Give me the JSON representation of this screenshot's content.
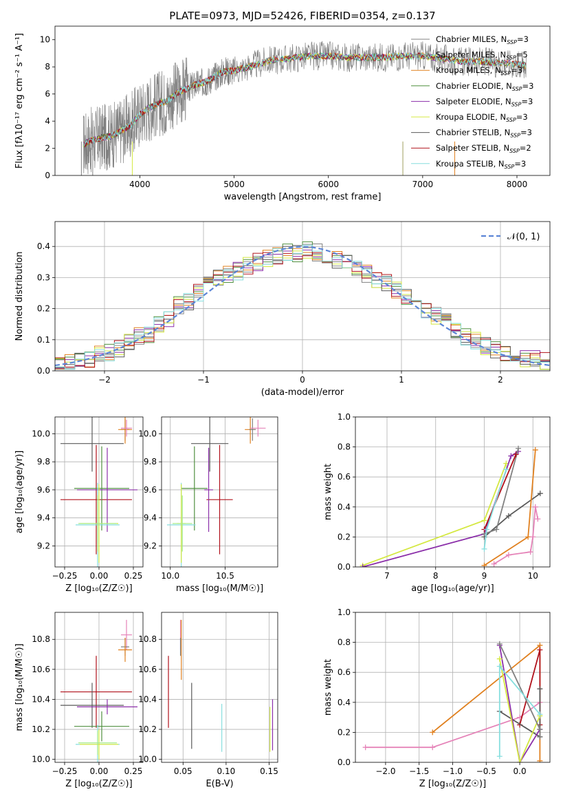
{
  "figure": {
    "title": "PLATE=0973, MJD=52426, FIBERID=0354, z=0.137"
  },
  "colors": {
    "Chabrier MILES": "#808080",
    "Salpeter MILES": "#8a8a8a",
    "Kroupa MILES": "#e0801f",
    "Chabrier ELODIE": "#4f8f3f",
    "Salpeter ELODIE": "#8b2fa9",
    "Kroupa ELODIE": "#d4e840",
    "Chabrier STELIB": "#595959",
    "Salpeter STELIB": "#b0101a",
    "Kroupa STELIB": "#86dede",
    "pink": "#e583b8",
    "green_light": "#a8ec8c",
    "dashed": "#5b85d6",
    "kroupa_age": "#e07a30"
  },
  "chart_data": [
    {
      "id": "spectrum",
      "type": "line",
      "title": "PLATE=0973, MJD=52426, FIBERID=0354, z=0.137",
      "xlabel": "wavelength [Angstrom, rest frame]",
      "ylabel": "Flux [fλ10⁻¹⁷ erg cm⁻² s⁻¹ A⁻¹]",
      "xlim": [
        3100,
        8350
      ],
      "ylim": [
        0,
        11
      ],
      "xticks": [
        4000,
        5000,
        6000,
        7000,
        8000
      ],
      "yticks": [
        0,
        2,
        4,
        6,
        8,
        10
      ],
      "legend_position": "right",
      "legend": [
        "Chabrier MILES, N_SSP=3",
        "Salpeter MILES, N_SSP=5",
        "Kroupa MILES, N_SSP=3",
        "Chabrier ELODIE, N_SSP=3",
        "Salpeter ELODIE, N_SSP=3",
        "Kroupa ELODIE, N_SSP=3",
        "Chabrier STELIB, N_SSP=3",
        "Salpeter STELIB, N_SSP=2",
        "Kroupa STELIB, N_SSP=3"
      ],
      "data_x": [
        3400,
        3500,
        3600,
        3700,
        3800,
        3900,
        4000,
        4100,
        4200,
        4300,
        4400,
        4500,
        4600,
        4700,
        4800,
        4900,
        5000,
        5200,
        5400,
        5600,
        5800,
        6000,
        6200,
        6400,
        6600,
        6800,
        7000,
        7200,
        7400,
        7600,
        7800,
        8000,
        8100
      ],
      "data_y": [
        2.3,
        2.6,
        2.8,
        2.9,
        3.3,
        3.7,
        4.5,
        5.0,
        5.3,
        5.5,
        6.1,
        6.4,
        6.7,
        6.9,
        7.3,
        7.7,
        7.7,
        8.1,
        8.5,
        8.6,
        8.8,
        8.8,
        8.7,
        8.7,
        8.7,
        8.8,
        8.8,
        8.6,
        8.4,
        8.4,
        8.3,
        8.2,
        8.1
      ]
    },
    {
      "id": "residual_hist",
      "type": "line",
      "xlabel": "(data-model)/error",
      "ylabel": "Normed distribution",
      "xlim": [
        -2.5,
        2.5
      ],
      "ylim": [
        0,
        0.48
      ],
      "xticks": [
        -2,
        -1,
        0,
        1,
        2
      ],
      "yticks": [
        0.0,
        0.1,
        0.2,
        0.3,
        0.4
      ],
      "legend": [
        "𝒩(0, 1)"
      ],
      "legend_position": "top-right",
      "bins": [
        -2.5,
        -2.4,
        -2.3,
        -2.2,
        -2.1,
        -2.0,
        -1.9,
        -1.8,
        -1.7,
        -1.6,
        -1.5,
        -1.4,
        -1.3,
        -1.2,
        -1.1,
        -1.0,
        -0.9,
        -0.8,
        -0.7,
        -0.6,
        -0.5,
        -0.4,
        -0.3,
        -0.2,
        -0.1,
        0.0,
        0.1,
        0.2,
        0.3,
        0.4,
        0.5,
        0.6,
        0.7,
        0.8,
        0.9,
        1.0,
        1.1,
        1.2,
        1.3,
        1.4,
        1.5,
        1.6,
        1.7,
        1.8,
        1.9,
        2.0,
        2.1,
        2.2,
        2.3,
        2.4
      ],
      "hist_values": [
        0.02,
        0.03,
        0.03,
        0.04,
        0.05,
        0.06,
        0.07,
        0.09,
        0.11,
        0.12,
        0.15,
        0.17,
        0.21,
        0.22,
        0.25,
        0.28,
        0.3,
        0.31,
        0.32,
        0.34,
        0.35,
        0.36,
        0.37,
        0.38,
        0.38,
        0.39,
        0.38,
        0.37,
        0.36,
        0.35,
        0.33,
        0.31,
        0.29,
        0.28,
        0.26,
        0.24,
        0.22,
        0.2,
        0.18,
        0.16,
        0.13,
        0.11,
        0.1,
        0.08,
        0.07,
        0.05,
        0.05,
        0.04,
        0.04,
        0.03
      ]
    },
    {
      "id": "age_vs_Z",
      "type": "scatter",
      "xlabel": "Z [log₁₀(Z/Z☉)]",
      "ylabel": "age  [log₁₀(age/yr)]",
      "xlim": [
        -0.32,
        0.32
      ],
      "ylim": [
        9.05,
        10.12
      ],
      "xticks": [
        -0.25,
        0.0,
        0.25
      ],
      "xticklabels": [
        "−0.25",
        "0.00",
        "0.25"
      ],
      "yticks": [
        9.2,
        9.4,
        9.6,
        9.8,
        10.0
      ],
      "points": [
        {
          "series": "Chabrier MILES",
          "x": 0.19,
          "y": 10.03,
          "xerr": 0.03,
          "yerr": 0.08
        },
        {
          "series": "Kroupa MILES",
          "x": 0.19,
          "y": 10.03,
          "xerr": 0.05,
          "yerr": 0.1
        },
        {
          "series": "pink",
          "x": 0.2,
          "y": 10.04,
          "xerr": 0.04,
          "yerr": 0.06
        },
        {
          "series": "Chabrier STELIB",
          "x": -0.05,
          "y": 9.93,
          "xerr": 0.23,
          "yerr": 0.2
        },
        {
          "series": "Salpeter STELIB",
          "x": -0.02,
          "y": 9.53,
          "xerr": 0.26,
          "yerr": 0.39
        },
        {
          "series": "Chabrier ELODIE",
          "x": 0.02,
          "y": 9.61,
          "xerr": 0.2,
          "yerr": 0.3
        },
        {
          "series": "Salpeter ELODIE",
          "x": 0.06,
          "y": 9.6,
          "xerr": 0.22,
          "yerr": 0.3
        },
        {
          "series": "Kroupa STELIB",
          "x": -0.01,
          "y": 9.35,
          "xerr": 0.16,
          "yerr": 0.3
        },
        {
          "series": "Kroupa ELODIE",
          "x": 0.0,
          "y": 9.36,
          "xerr": 0.14,
          "yerr": 0.28
        },
        {
          "series": "green_light",
          "x": -0.01,
          "y": 9.36,
          "xerr": 0.14,
          "yerr": 0.2
        }
      ]
    },
    {
      "id": "age_vs_mass",
      "type": "scatter",
      "xlabel": "mass [log₁₀(M/M☉)]",
      "ylabel": "",
      "xlim": [
        9.92,
        10.98
      ],
      "ylim": [
        9.05,
        10.12
      ],
      "xticks": [
        10.0,
        10.5
      ],
      "xticklabels": [
        "10.0",
        "10.5"
      ],
      "yticks": [
        9.2,
        9.4,
        9.6,
        9.8,
        10.0
      ],
      "points": [
        {
          "series": "Kroupa MILES",
          "x": 10.73,
          "y": 10.03,
          "xerr": 0.05,
          "yerr": 0.1
        },
        {
          "series": "Chabrier MILES",
          "x": 10.75,
          "y": 10.03,
          "xerr": 0.03,
          "yerr": 0.08
        },
        {
          "series": "pink",
          "x": 10.8,
          "y": 10.04,
          "xerr": 0.07,
          "yerr": 0.06
        },
        {
          "series": "Chabrier STELIB",
          "x": 10.36,
          "y": 9.93,
          "xerr": 0.17,
          "yerr": 0.2
        },
        {
          "series": "Salpeter STELIB",
          "x": 10.45,
          "y": 9.53,
          "xerr": 0.12,
          "yerr": 0.39
        },
        {
          "series": "Chabrier ELODIE",
          "x": 10.22,
          "y": 9.61,
          "xerr": 0.12,
          "yerr": 0.3
        },
        {
          "series": "Salpeter ELODIE",
          "x": 10.35,
          "y": 9.6,
          "xerr": 0.04,
          "yerr": 0.3
        },
        {
          "series": "Kroupa STELIB",
          "x": 10.1,
          "y": 9.35,
          "xerr": 0.13,
          "yerr": 0.3
        },
        {
          "series": "Kroupa ELODIE",
          "x": 10.1,
          "y": 9.36,
          "xerr": 0.04,
          "yerr": 0.28
        },
        {
          "series": "green_light",
          "x": 10.11,
          "y": 9.36,
          "xerr": 0.09,
          "yerr": 0.2
        }
      ]
    },
    {
      "id": "massweight_vs_age",
      "type": "line",
      "xlabel": "age  [log₁₀(age/yr)]",
      "ylabel": "mass weight",
      "xlim": [
        6.35,
        10.35
      ],
      "ylim": [
        0,
        1.0
      ],
      "xticks": [
        7,
        8,
        9,
        10
      ],
      "yticks": [
        0.0,
        0.2,
        0.4,
        0.6,
        0.8,
        1.0
      ],
      "series": [
        {
          "color": "Kroupa ELODIE",
          "x": [
            6.5,
            9.0,
            9.45
          ],
          "y": [
            0.01,
            0.31,
            0.69
          ]
        },
        {
          "color": "Salpeter ELODIE",
          "x": [
            6.5,
            9.0,
            9.55,
            9.7
          ],
          "y": [
            0.0,
            0.22,
            0.74,
            0.77
          ]
        },
        {
          "color": "Chabrier STELIB",
          "x": [
            9.0,
            9.5,
            10.15
          ],
          "y": [
            0.2,
            0.34,
            0.49
          ]
        },
        {
          "color": "Chabrier MILES",
          "x": [
            9.0,
            9.25,
            9.7
          ],
          "y": [
            0.22,
            0.25,
            0.79
          ]
        },
        {
          "color": "Salpeter STELIB",
          "x": [
            9.0,
            9.65
          ],
          "y": [
            0.25,
            0.75
          ]
        },
        {
          "color": "Kroupa STELIB",
          "x": [
            9.0,
            9.05,
            9.45
          ],
          "y": [
            0.12,
            0.25,
            0.65
          ]
        },
        {
          "color": "Kroupa MILES",
          "x": [
            9.0,
            9.9,
            10.05
          ],
          "y": [
            0.01,
            0.2,
            0.78
          ]
        },
        {
          "color": "pink",
          "x": [
            9.2,
            9.5,
            9.95,
            10.0,
            10.05,
            10.1
          ],
          "y": [
            0.02,
            0.08,
            0.1,
            0.2,
            0.4,
            0.32
          ]
        }
      ]
    },
    {
      "id": "mass_vs_Z",
      "type": "scatter",
      "xlabel": "Z [log₁₀(Z/Z☉)]",
      "ylabel": "mass [log₁₀(M/M☉)]",
      "xlim": [
        -0.32,
        0.32
      ],
      "ylim": [
        9.98,
        10.98
      ],
      "xticks": [
        -0.25,
        0.0,
        0.25
      ],
      "xticklabels": [
        "−0.25",
        "0.00",
        "0.25"
      ],
      "yticks": [
        10.0,
        10.2,
        10.4,
        10.6,
        10.8
      ],
      "points": [
        {
          "series": "pink",
          "x": 0.2,
          "y": 10.83,
          "xerr": 0.04,
          "yerr": 0.1
        },
        {
          "series": "Chabrier MILES",
          "x": 0.19,
          "y": 10.75,
          "xerr": 0.03,
          "yerr": 0.06
        },
        {
          "series": "Kroupa MILES",
          "x": 0.19,
          "y": 10.73,
          "xerr": 0.05,
          "yerr": 0.08
        },
        {
          "series": "Salpeter STELIB",
          "x": -0.02,
          "y": 10.45,
          "xerr": 0.26,
          "yerr": 0.24
        },
        {
          "series": "Chabrier STELIB",
          "x": -0.05,
          "y": 10.36,
          "xerr": 0.23,
          "yerr": 0.15
        },
        {
          "series": "Salpeter ELODIE",
          "x": 0.06,
          "y": 10.35,
          "xerr": 0.22,
          "yerr": 0.05
        },
        {
          "series": "Chabrier ELODIE",
          "x": 0.02,
          "y": 10.22,
          "xerr": 0.2,
          "yerr": 0.1
        },
        {
          "series": "Kroupa STELIB",
          "x": -0.01,
          "y": 10.1,
          "xerr": 0.16,
          "yerr": 0.13
        },
        {
          "series": "Kroupa ELODIE",
          "x": 0.0,
          "y": 10.1,
          "xerr": 0.14,
          "yerr": 0.1
        },
        {
          "series": "green_light",
          "x": -0.01,
          "y": 10.11,
          "xerr": 0.14,
          "yerr": 0.08
        }
      ]
    },
    {
      "id": "mass_vs_EBV",
      "type": "scatter",
      "xlabel": "E(B-V)",
      "ylabel": "",
      "xlim": [
        0.025,
        0.16
      ],
      "ylim": [
        9.98,
        10.98
      ],
      "xticks": [
        0.05,
        0.1,
        0.15
      ],
      "xticklabels": [
        "0.05",
        "0.10",
        "0.15"
      ],
      "yticks": [
        10.0,
        10.2,
        10.4,
        10.6,
        10.8
      ],
      "points": [
        {
          "series": "Salpeter STELIB",
          "x": 0.033,
          "y": 10.45,
          "yerr": 0.24
        },
        {
          "series": "pink",
          "x": 0.047,
          "y": 10.83,
          "yerr": 0.1
        },
        {
          "series": "Kroupa MILES",
          "x": 0.048,
          "y": 10.73,
          "yerr": 0.2
        },
        {
          "series": "Chabrier MILES",
          "x": 0.047,
          "y": 10.75,
          "yerr": 0.06
        },
        {
          "series": "Chabrier STELIB",
          "x": 0.06,
          "y": 10.29,
          "yerr": 0.22
        },
        {
          "series": "Kroupa STELIB",
          "x": 0.095,
          "y": 10.21,
          "yerr": 0.16
        },
        {
          "series": "Kroupa ELODIE",
          "x": 0.151,
          "y": 10.2,
          "yerr": 0.15
        },
        {
          "series": "Salpeter ELODIE",
          "x": 0.154,
          "y": 10.23,
          "yerr": 0.17
        }
      ]
    },
    {
      "id": "massweight_vs_Z",
      "type": "line",
      "xlabel": "Z [log₁₀(Z/Z☉)]",
      "ylabel": "mass weight",
      "xlim": [
        -2.45,
        0.45
      ],
      "ylim": [
        0,
        1.0
      ],
      "xticks": [
        -2.0,
        -1.5,
        -1.0,
        -0.5,
        0.0
      ],
      "xticklabels": [
        "−2.0",
        "−1.5",
        "−1.0",
        "−0.5",
        "0.0"
      ],
      "yticks": [
        0.0,
        0.2,
        0.4,
        0.6,
        0.8,
        1.0
      ],
      "series": [
        {
          "color": "pink",
          "x": [
            -2.3,
            -1.3,
            0.0,
            0.3
          ],
          "y": [
            0.1,
            0.1,
            0.3,
            0.4
          ]
        },
        {
          "color": "Kroupa MILES",
          "x": [
            -1.3,
            0.3,
            0.3
          ],
          "y": [
            0.2,
            0.78,
            0.01
          ]
        },
        {
          "color": "Salpeter STELIB",
          "x": [
            0.0,
            0.3,
            0.3
          ],
          "y": [
            0.25,
            0.75,
            0.25
          ]
        },
        {
          "color": "Chabrier STELIB",
          "x": [
            -0.3,
            0.3,
            0.3
          ],
          "y": [
            0.34,
            0.17,
            0.49
          ]
        },
        {
          "color": "Salpeter ELODIE",
          "x": [
            -0.3,
            0.0,
            0.3
          ],
          "y": [
            0.78,
            0.0,
            0.22
          ]
        },
        {
          "color": "Kroupa ELODIE",
          "x": [
            -0.3,
            0.0,
            0.3
          ],
          "y": [
            0.69,
            0.0,
            0.31
          ]
        },
        {
          "color": "Chabrier MILES",
          "x": [
            -0.3,
            0.3,
            0.3
          ],
          "y": [
            0.79,
            0.22,
            0.17
          ]
        },
        {
          "color": "Kroupa STELIB",
          "x": [
            -0.3,
            -0.3,
            0.3
          ],
          "y": [
            0.04,
            0.64,
            0.32
          ]
        }
      ]
    }
  ]
}
